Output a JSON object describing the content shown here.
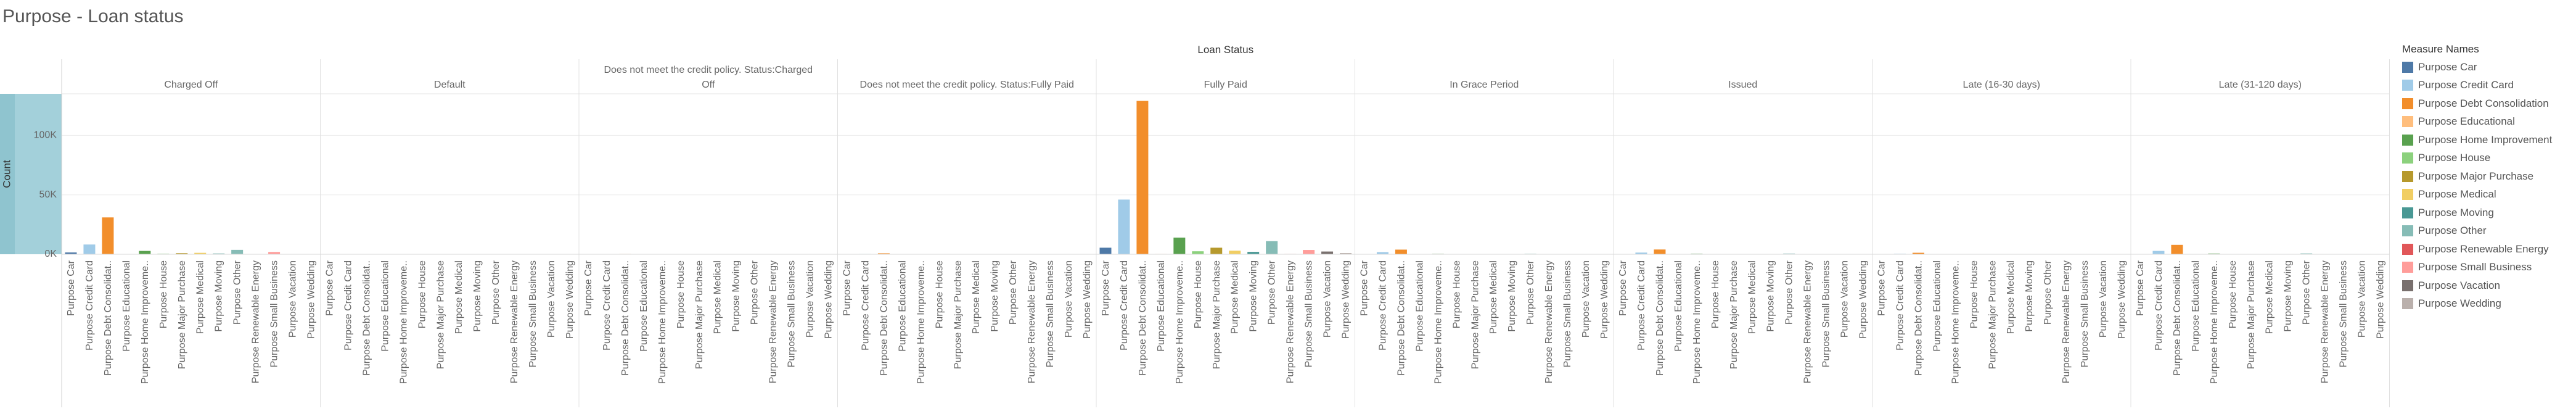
{
  "page": {
    "title": "Purpose - Loan status"
  },
  "chart_data": {
    "type": "bar",
    "title": "Purpose - Loan status",
    "column_header": "Loan Status",
    "ylabel": "Count",
    "ylim": [
      0,
      135000
    ],
    "y_ticks": [
      0,
      50000,
      100000
    ],
    "y_tick_labels": [
      "0K",
      "50K",
      "100K"
    ],
    "grid": true,
    "legend_title": "Measure Names",
    "legend_position": "right",
    "categories": [
      "Purpose Car",
      "Purpose Credit Card",
      "Purpose Debt Consolidation",
      "Purpose Educational",
      "Purpose Home Improvement",
      "Purpose House",
      "Purpose Major Purchase",
      "Purpose Medical",
      "Purpose Moving",
      "Purpose Other",
      "Purpose Renewable Energy",
      "Purpose Small Business",
      "Purpose Vacation",
      "Purpose Wedding"
    ],
    "tick_labels": [
      "Purpose Car",
      "Purpose Credit Card",
      "Purpose Debt Consolidat..",
      "Purpose Educational",
      "Purpose Home Improveme..",
      "Purpose House",
      "Purpose Major Purchase",
      "Purpose Medical",
      "Purpose Moving",
      "Purpose Other",
      "Purpose Renewable Energy",
      "Purpose Small Business",
      "Purpose Vacation",
      "Purpose Wedding"
    ],
    "colors": [
      "#4e79a7",
      "#a0cbe8",
      "#f28e2b",
      "#ffbe7d",
      "#59a14f",
      "#8cd17d",
      "#b6992d",
      "#f1ce63",
      "#499894",
      "#86bcb6",
      "#e15759",
      "#ff9d9a",
      "#79706e",
      "#bab0ac"
    ],
    "panels": [
      {
        "label_lines": [
          "Charged Off"
        ],
        "values": [
          1500,
          8200,
          31000,
          80,
          2800,
          500,
          900,
          1200,
          600,
          3700,
          90,
          1900,
          250,
          10
        ]
      },
      {
        "label_lines": [
          "Default"
        ],
        "values": [
          10,
          30,
          80,
          0,
          10,
          0,
          2,
          2,
          1,
          5,
          0,
          3,
          1,
          0
        ]
      },
      {
        "label_lines": [
          "Does not meet the credit policy. Status:Charged",
          "Off"
        ],
        "values": [
          20,
          100,
          300,
          30,
          40,
          5,
          20,
          15,
          10,
          80,
          5,
          40,
          5,
          10
        ]
      },
      {
        "label_lines": [
          "Does not meet the credit policy. Status:Fully Paid"
        ],
        "values": [
          60,
          300,
          800,
          80,
          130,
          10,
          50,
          30,
          20,
          200,
          5,
          60,
          10,
          30
        ]
      },
      {
        "label_lines": [
          "Fully Paid"
        ],
        "values": [
          5500,
          46000,
          129000,
          300,
          14000,
          2500,
          5500,
          3000,
          2000,
          11000,
          300,
          3600,
          2300,
          1000
        ]
      },
      {
        "label_lines": [
          "In Grace Period"
        ],
        "values": [
          100,
          1800,
          3900,
          0,
          400,
          60,
          150,
          80,
          60,
          450,
          5,
          110,
          40,
          0
        ]
      },
      {
        "label_lines": [
          "Issued"
        ],
        "values": [
          60,
          1400,
          4000,
          0,
          500,
          80,
          150,
          100,
          70,
          600,
          5,
          80,
          50,
          0
        ]
      },
      {
        "label_lines": [
          "Late (16-30 days)"
        ],
        "values": [
          30,
          450,
          1250,
          0,
          130,
          20,
          40,
          30,
          20,
          130,
          2,
          40,
          15,
          0
        ]
      },
      {
        "label_lines": [
          "Late (31-120 days)"
        ],
        "values": [
          150,
          2800,
          7900,
          0,
          600,
          90,
          250,
          150,
          100,
          700,
          10,
          220,
          70,
          0
        ]
      }
    ]
  }
}
